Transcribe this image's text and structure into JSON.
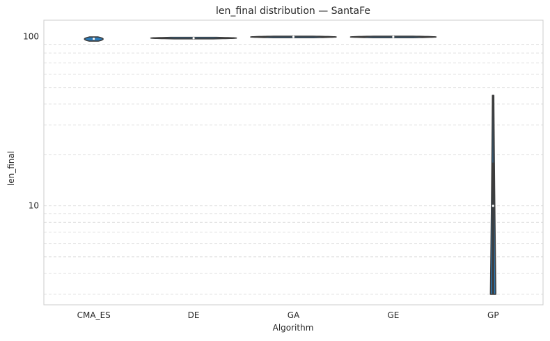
{
  "chart_data": {
    "type": "violin",
    "title": "len_final distribution — SantaFe",
    "xlabel": "Algorithm",
    "ylabel": "len_final",
    "yscale": "log",
    "ylim": [
      2.6,
      125
    ],
    "yticks": [
      10,
      100
    ],
    "ytick_labels": [
      "10",
      "100"
    ],
    "grid": true,
    "grid_axis": "y-major-and-minor",
    "categories": [
      "CMA_ES",
      "DE",
      "GA",
      "GE",
      "GP"
    ],
    "violins": [
      {
        "category": "CMA_ES",
        "min": 94,
        "q1": 96,
        "median": 97,
        "q3": 98.5,
        "max": 99.5,
        "max_width": 0.18
      },
      {
        "category": "DE",
        "min": 97,
        "q1": 97.5,
        "median": 98,
        "q3": 98.5,
        "max": 99,
        "max_width": 0.85
      },
      {
        "category": "GA",
        "min": 98.5,
        "q1": 99,
        "median": 99.5,
        "q3": 100,
        "max": 100.5,
        "max_width": 0.85
      },
      {
        "category": "GE",
        "min": 98.5,
        "q1": 99,
        "median": 99.5,
        "q3": 100,
        "max": 100.5,
        "max_width": 0.85
      },
      {
        "category": "GP",
        "min": 3,
        "q1": 3,
        "median": 10,
        "q3": 18,
        "max": 45,
        "max_width": 0.04
      }
    ],
    "colors": {
      "fill": "#2b7bb9",
      "edge": "#3d3d3d",
      "grid": "#d4d4d4",
      "spine": "#cccccc"
    }
  }
}
